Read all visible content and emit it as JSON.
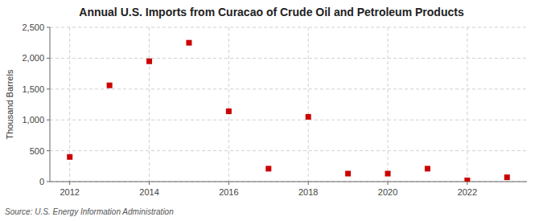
{
  "chart_data": {
    "type": "scatter",
    "title": "Annual U.S. Imports from Curacao of Crude Oil and Petroleum Products",
    "ylabel": "Thousand Barrels",
    "source": "Source: U.S. Energy Information Administration",
    "x": [
      2012,
      2013,
      2014,
      2015,
      2016,
      2017,
      2018,
      2019,
      2020,
      2021,
      2022,
      2023
    ],
    "values": [
      400,
      1560,
      1950,
      2250,
      1140,
      210,
      1050,
      130,
      130,
      210,
      20,
      70
    ],
    "color": "#cc0000",
    "marker": "square",
    "grid": true,
    "xlim": [
      2011.5,
      2023.5
    ],
    "xticks": [
      2012,
      2014,
      2016,
      2018,
      2020,
      2022
    ],
    "ylim": [
      0,
      2500
    ],
    "yticks": [
      0,
      500,
      {
        "value": 1000,
        "label": "1,000"
      },
      {
        "value": 1500,
        "label": "1,500"
      },
      {
        "value": 2000,
        "label": "2,000"
      },
      {
        "value": 2500,
        "label": "2,500"
      }
    ]
  }
}
